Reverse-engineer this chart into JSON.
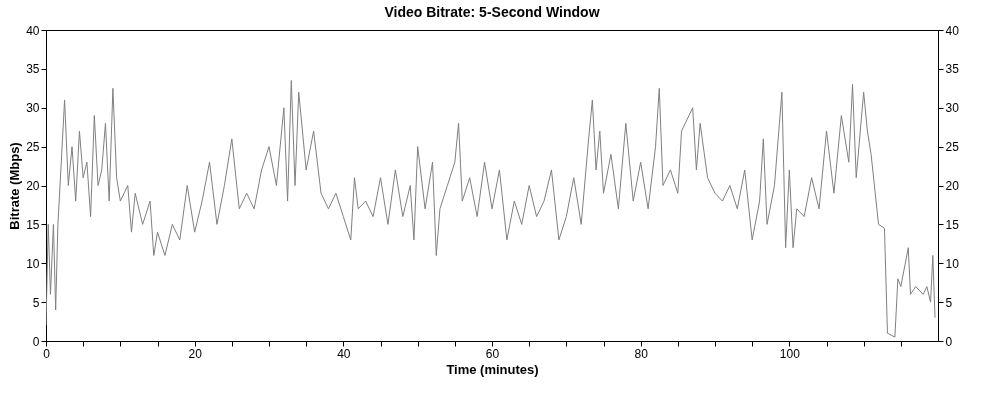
{
  "chart_data": {
    "type": "line",
    "title": "Video Bitrate: 5-Second Window",
    "xlabel": "Time (minutes)",
    "ylabel": "Bitrate (Mbps)",
    "xlim": [
      0,
      120
    ],
    "xticks": [
      0,
      {
        "value": 5,
        "label": null
      },
      {
        "value": 10,
        "label": null
      },
      {
        "value": 15,
        "label": null
      },
      20,
      {
        "value": 25,
        "label": null
      },
      {
        "value": 30,
        "label": null
      },
      {
        "value": 35,
        "label": null
      },
      40,
      {
        "value": 45,
        "label": null
      },
      {
        "value": 50,
        "label": null
      },
      {
        "value": 55,
        "label": null
      },
      60,
      {
        "value": 65,
        "label": null
      },
      {
        "value": 70,
        "label": null
      },
      {
        "value": 75,
        "label": null
      },
      80,
      {
        "value": 85,
        "label": null
      },
      {
        "value": 90,
        "label": null
      },
      {
        "value": 95,
        "label": null
      },
      100,
      {
        "value": 105,
        "label": null
      },
      {
        "value": 110,
        "label": null
      },
      {
        "value": 115,
        "label": null
      }
    ],
    "ylim": [
      0,
      40
    ],
    "yticks": [
      0,
      5,
      10,
      15,
      20,
      25,
      30,
      35,
      40
    ],
    "y2lim": [
      0,
      40
    ],
    "y2ticks": [
      0,
      5,
      10,
      15,
      20,
      25,
      30,
      35,
      40
    ],
    "grid": false,
    "series": [
      {
        "color": "#808080",
        "x": [
          0,
          0.3,
          0.6,
          1,
          1.3,
          1.6,
          2,
          2.5,
          3,
          3.5,
          4,
          4.5,
          5,
          5.5,
          6,
          6.5,
          7,
          7.5,
          8,
          8.5,
          9,
          9.5,
          10,
          11,
          11.5,
          12,
          13,
          14,
          14.5,
          15,
          16,
          17,
          18,
          19,
          20,
          21,
          22,
          23,
          24,
          25,
          26,
          27,
          28,
          29,
          30,
          31,
          32,
          32.5,
          33,
          33.5,
          34,
          35,
          36,
          37,
          38,
          39,
          40,
          41,
          41.5,
          42,
          43,
          44,
          45,
          46,
          47,
          48,
          49,
          49.5,
          50,
          51,
          52,
          52.5,
          53,
          54,
          55,
          55.5,
          56,
          57,
          58,
          59,
          60,
          61,
          62,
          63,
          64,
          65,
          66,
          67,
          68,
          69,
          70,
          71,
          72,
          73,
          73.5,
          74,
          74.5,
          75,
          76,
          77,
          78,
          79,
          80,
          81,
          82,
          82.5,
          83,
          84,
          85,
          85.5,
          86,
          87,
          87.5,
          88,
          89,
          90,
          91,
          92,
          93,
          94,
          95,
          96,
          96.5,
          97,
          98,
          99,
          99.5,
          100,
          100.5,
          101,
          102,
          103,
          104,
          105,
          106,
          107,
          108,
          108.5,
          109,
          110,
          110.5,
          111,
          112,
          112.8,
          113.2,
          114.2,
          114.6,
          115,
          116,
          116.3,
          117,
          118,
          118.5,
          119,
          119.3,
          119.6
        ],
        "values": [
          2,
          15,
          6,
          15,
          4,
          15,
          22,
          31,
          20,
          25,
          18,
          27,
          21,
          23,
          16,
          29,
          20,
          22,
          28,
          18,
          32.5,
          21,
          18,
          20,
          14,
          19,
          15,
          18,
          11,
          14,
          11,
          15,
          13,
          20,
          14,
          18,
          23,
          15,
          20,
          26,
          17,
          19,
          17,
          22,
          25,
          20,
          30,
          18,
          33.5,
          20,
          32,
          22,
          27,
          19,
          17,
          19,
          16,
          13,
          21,
          17,
          18,
          16,
          21,
          15,
          22,
          16,
          20,
          13,
          25,
          17,
          23,
          11,
          17,
          20,
          23,
          28,
          18,
          21,
          16,
          23,
          17,
          22,
          13,
          18,
          15,
          20,
          16,
          18,
          22,
          13,
          16,
          21,
          15,
          26,
          31,
          22,
          27,
          19,
          24,
          17,
          28,
          18,
          23,
          17,
          25,
          32.5,
          20,
          22,
          19,
          27,
          28,
          30,
          22,
          28,
          21,
          19,
          18,
          20,
          17,
          22,
          13,
          18,
          26,
          15,
          20,
          32,
          12,
          22,
          12,
          17,
          16,
          21,
          17,
          27,
          19,
          29,
          23,
          33,
          21,
          32,
          27,
          24,
          15,
          14.5,
          1,
          0.5,
          8,
          7,
          12,
          6,
          7,
          6,
          7,
          5,
          11,
          3
        ]
      }
    ]
  }
}
